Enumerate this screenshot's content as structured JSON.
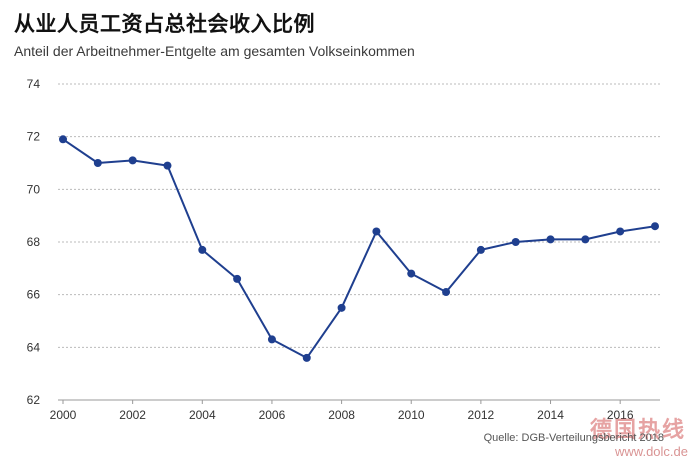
{
  "header": {
    "title": "从业人员工资占总社会收入比例",
    "subtitle": "Anteil der Arbeitnehmer-Entgelte am gesamten Volkseinkommen"
  },
  "footer": {
    "source": "Quelle: DGB-Verteilungsbericht 2018",
    "watermark": "德国热线",
    "watermark_url": "www.dolc.de"
  },
  "colors": {
    "line": "#1f3f8f",
    "grid": "#bbbbbb",
    "axis": "#999999",
    "tick_text": "#333333"
  },
  "chart_data": {
    "type": "line",
    "title": "从业人员工资占总社会收入比例",
    "subtitle": "Anteil der Arbeitnehmer-Entgelte am gesamten Volkseinkommen",
    "xlabel": "",
    "ylabel": "",
    "x": [
      2000,
      2001,
      2002,
      2003,
      2004,
      2005,
      2006,
      2007,
      2008,
      2009,
      2010,
      2011,
      2012,
      2013,
      2014,
      2015,
      2016,
      2017
    ],
    "values": [
      71.9,
      71.0,
      71.1,
      70.9,
      67.7,
      66.6,
      64.3,
      63.6,
      65.5,
      68.4,
      66.8,
      66.1,
      67.7,
      68.0,
      68.1,
      68.1,
      68.4,
      68.6
    ],
    "xlim": [
      2000,
      2017
    ],
    "ylim": [
      62,
      74
    ],
    "yticks": [
      62,
      64,
      66,
      68,
      70,
      72,
      74
    ],
    "xticks": [
      2000,
      2002,
      2004,
      2006,
      2008,
      2010,
      2012,
      2014,
      2016
    ],
    "grid": true,
    "legend": "none"
  }
}
